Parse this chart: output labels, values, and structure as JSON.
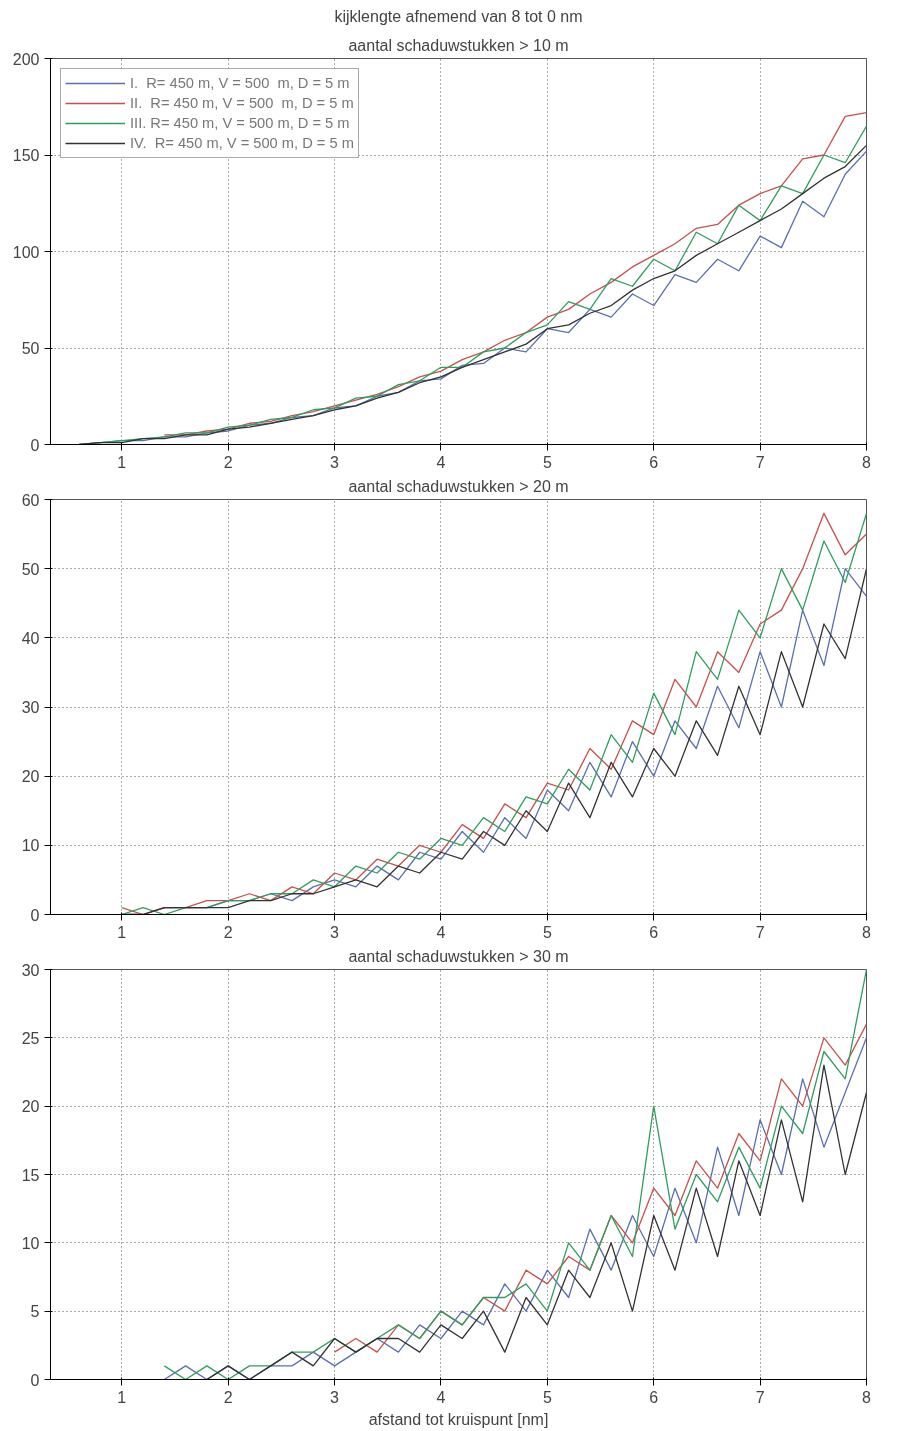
{
  "chart_data": [
    {
      "type": "line",
      "title": "kijklengte afnemend van 8 tot 0 nm",
      "subtitle": "aantal schaduwstukken > 10 m",
      "x": [
        0.6,
        0.8,
        1.0,
        1.2,
        1.4,
        1.6,
        1.8,
        2.0,
        2.2,
        2.4,
        2.6,
        2.8,
        3.0,
        3.2,
        3.4,
        3.6,
        3.8,
        4.0,
        4.2,
        4.4,
        4.6,
        4.8,
        5.0,
        5.2,
        5.4,
        5.6,
        5.8,
        6.0,
        6.2,
        6.4,
        6.6,
        6.8,
        7.0,
        7.2,
        7.4,
        7.6,
        7.8,
        8.0
      ],
      "xlim": [
        0.33,
        8
      ],
      "xticks": [
        1,
        2,
        3,
        4,
        5,
        6,
        7,
        8
      ],
      "ylim": [
        0,
        200
      ],
      "yticks": [
        0,
        50,
        100,
        150,
        200
      ],
      "grid": true,
      "legend": "top left",
      "series": [
        {
          "name": "I.  R= 450 m, V = 500  m, D = 5 m",
          "color": "#5a6fb0",
          "values": [
            0,
            1,
            2,
            2,
            4,
            4,
            6,
            7,
            10,
            11,
            14,
            15,
            19,
            20,
            25,
            27,
            33,
            34,
            41,
            42,
            50,
            48,
            60,
            58,
            70,
            66,
            78,
            72,
            88,
            84,
            96,
            90,
            108,
            102,
            126,
            118,
            140,
            152
          ]
        },
        {
          "name": "II.  R= 450 m, V = 500  m, D = 5 m",
          "color": "#c8504a",
          "x": [
            1.4,
            1.6,
            1.8,
            2.0,
            2.2,
            2.4,
            2.6,
            2.8,
            3.0,
            3.2,
            3.4,
            3.6,
            3.8,
            4.0,
            4.2,
            4.4,
            4.6,
            4.8,
            5.0,
            5.2,
            5.4,
            5.6,
            5.8,
            6.0,
            6.2,
            6.4,
            6.6,
            6.8,
            7.0,
            7.2,
            7.4,
            7.6,
            7.8,
            8.0
          ],
          "values": [
            5,
            5,
            7,
            8,
            11,
            12,
            15,
            17,
            20,
            23,
            26,
            30,
            35,
            38,
            44,
            48,
            54,
            58,
            66,
            70,
            78,
            84,
            92,
            98,
            104,
            112,
            114,
            124,
            130,
            134,
            148,
            150,
            170,
            172
          ]
        },
        {
          "name": "III. R= 450 m, V = 500 m, D = 5 m",
          "color": "#2e9e5e",
          "values": [
            0,
            1,
            2,
            3,
            4,
            6,
            6,
            9,
            10,
            13,
            14,
            18,
            19,
            24,
            25,
            31,
            33,
            40,
            40,
            48,
            50,
            58,
            62,
            74,
            70,
            86,
            82,
            96,
            90,
            110,
            104,
            124,
            116,
            134,
            130,
            150,
            146,
            165
          ]
        },
        {
          "name": "IV.  R= 450 m, V = 500 m, D = 5 m",
          "color": "#333333",
          "values": [
            0,
            1,
            1,
            3,
            3,
            5,
            5,
            8,
            9,
            11,
            13,
            15,
            18,
            20,
            24,
            27,
            32,
            35,
            40,
            44,
            48,
            52,
            60,
            62,
            68,
            72,
            80,
            86,
            90,
            98,
            104,
            110,
            116,
            122,
            130,
            138,
            144,
            155
          ]
        }
      ]
    },
    {
      "type": "line",
      "title": "aantal schaduwstukken > 20 m",
      "x": [
        1.0,
        1.2,
        1.4,
        1.6,
        1.8,
        2.0,
        2.2,
        2.4,
        2.6,
        2.8,
        3.0,
        3.2,
        3.4,
        3.6,
        3.8,
        4.0,
        4.2,
        4.4,
        4.6,
        4.8,
        5.0,
        5.2,
        5.4,
        5.6,
        5.8,
        6.0,
        6.2,
        6.4,
        6.6,
        6.8,
        7.0,
        7.2,
        7.4,
        7.6,
        7.8,
        8.0
      ],
      "xlim": [
        0.33,
        8
      ],
      "xticks": [
        1,
        2,
        3,
        4,
        5,
        6,
        7,
        8
      ],
      "ylim": [
        0,
        60
      ],
      "yticks": [
        0,
        10,
        20,
        30,
        40,
        50,
        60
      ],
      "grid": true,
      "series": [
        {
          "color": "#5a6fb0",
          "values": [
            0,
            0,
            1,
            1,
            1,
            2,
            2,
            3,
            2,
            4,
            5,
            4,
            7,
            5,
            9,
            8,
            12,
            9,
            14,
            11,
            18,
            15,
            22,
            17,
            25,
            20,
            28,
            24,
            33,
            27,
            38,
            30,
            44,
            36,
            50,
            46
          ]
        },
        {
          "color": "#c8504a",
          "values": [
            1,
            0,
            1,
            1,
            2,
            2,
            3,
            2,
            4,
            3,
            6,
            5,
            8,
            7,
            10,
            9,
            13,
            11,
            16,
            14,
            19,
            18,
            24,
            21,
            28,
            26,
            34,
            30,
            38,
            35,
            42,
            44,
            50,
            58,
            52,
            55
          ]
        },
        {
          "color": "#2e9e5e",
          "values": [
            0,
            1,
            0,
            1,
            1,
            2,
            2,
            3,
            3,
            5,
            4,
            7,
            6,
            9,
            8,
            11,
            10,
            14,
            12,
            17,
            16,
            21,
            18,
            26,
            22,
            32,
            26,
            38,
            34,
            44,
            40,
            50,
            44,
            54,
            48,
            58
          ]
        },
        {
          "color": "#333333",
          "values": [
            0,
            0,
            1,
            1,
            1,
            1,
            2,
            2,
            3,
            3,
            4,
            5,
            4,
            7,
            6,
            9,
            8,
            12,
            10,
            15,
            12,
            19,
            14,
            22,
            17,
            24,
            20,
            28,
            23,
            33,
            26,
            38,
            30,
            42,
            37,
            50
          ]
        }
      ]
    },
    {
      "type": "line",
      "title": "aantal schaduwstukken > 30 m",
      "xlabel": "afstand tot kruispunt [nm]",
      "x": [
        1.4,
        1.6,
        1.8,
        2.0,
        2.2,
        2.4,
        2.6,
        2.8,
        3.0,
        3.2,
        3.4,
        3.6,
        3.8,
        4.0,
        4.2,
        4.4,
        4.6,
        4.8,
        5.0,
        5.2,
        5.4,
        5.6,
        5.8,
        6.0,
        6.2,
        6.4,
        6.6,
        6.8,
        7.0,
        7.2,
        7.4,
        7.6,
        7.8,
        8.0
      ],
      "xlim": [
        0.33,
        8
      ],
      "xticks": [
        1,
        2,
        3,
        4,
        5,
        6,
        7,
        8
      ],
      "ylim": [
        0,
        30
      ],
      "yticks": [
        0,
        5,
        10,
        15,
        20,
        25,
        30
      ],
      "grid": true,
      "series": [
        {
          "color": "#5a6fb0",
          "values": [
            0,
            1,
            0,
            1,
            0,
            1,
            1,
            2,
            1,
            2,
            3,
            2,
            4,
            3,
            5,
            4,
            7,
            5,
            8,
            6,
            11,
            8,
            12,
            9,
            14,
            10,
            17,
            12,
            19,
            15,
            22,
            17,
            21,
            25
          ]
        },
        {
          "color": "#c8504a",
          "x": [
            3.0,
            3.2,
            3.4,
            3.6,
            3.8,
            4.0,
            4.2,
            4.4,
            4.6,
            4.8,
            5.0,
            5.2,
            5.4,
            5.6,
            5.8,
            6.0,
            6.2,
            6.4,
            6.6,
            6.8,
            7.0,
            7.2,
            7.4,
            7.6,
            7.8,
            8.0
          ],
          "values": [
            2,
            3,
            2,
            4,
            3,
            5,
            4,
            6,
            5,
            8,
            7,
            9,
            8,
            12,
            10,
            14,
            12,
            16,
            14,
            18,
            16,
            22,
            20,
            25,
            23,
            26
          ]
        },
        {
          "color": "#2e9e5e",
          "values": [
            1,
            0,
            1,
            0,
            1,
            1,
            2,
            2,
            3,
            2,
            3,
            4,
            3,
            5,
            4,
            6,
            6,
            7,
            5,
            10,
            8,
            12,
            9,
            20,
            11,
            15,
            13,
            17,
            14,
            20,
            18,
            24,
            22,
            30
          ]
        },
        {
          "color": "#333333",
          "x": [
            1.8,
            2.0,
            2.2,
            2.4,
            2.6,
            2.8,
            3.0,
            3.2,
            3.4,
            3.6,
            3.8,
            4.0,
            4.2,
            4.4,
            4.6,
            4.8,
            5.0,
            5.2,
            5.4,
            5.6,
            5.8,
            6.0,
            6.2,
            6.4,
            6.6,
            6.8,
            7.0,
            7.2,
            7.4,
            7.6,
            7.8,
            8.0
          ],
          "values": [
            0,
            1,
            0,
            1,
            2,
            1,
            3,
            2,
            3,
            3,
            2,
            4,
            3,
            5,
            2,
            6,
            4,
            8,
            6,
            10,
            5,
            12,
            8,
            14,
            9,
            16,
            12,
            19,
            13,
            23,
            15,
            21
          ]
        }
      ]
    }
  ]
}
